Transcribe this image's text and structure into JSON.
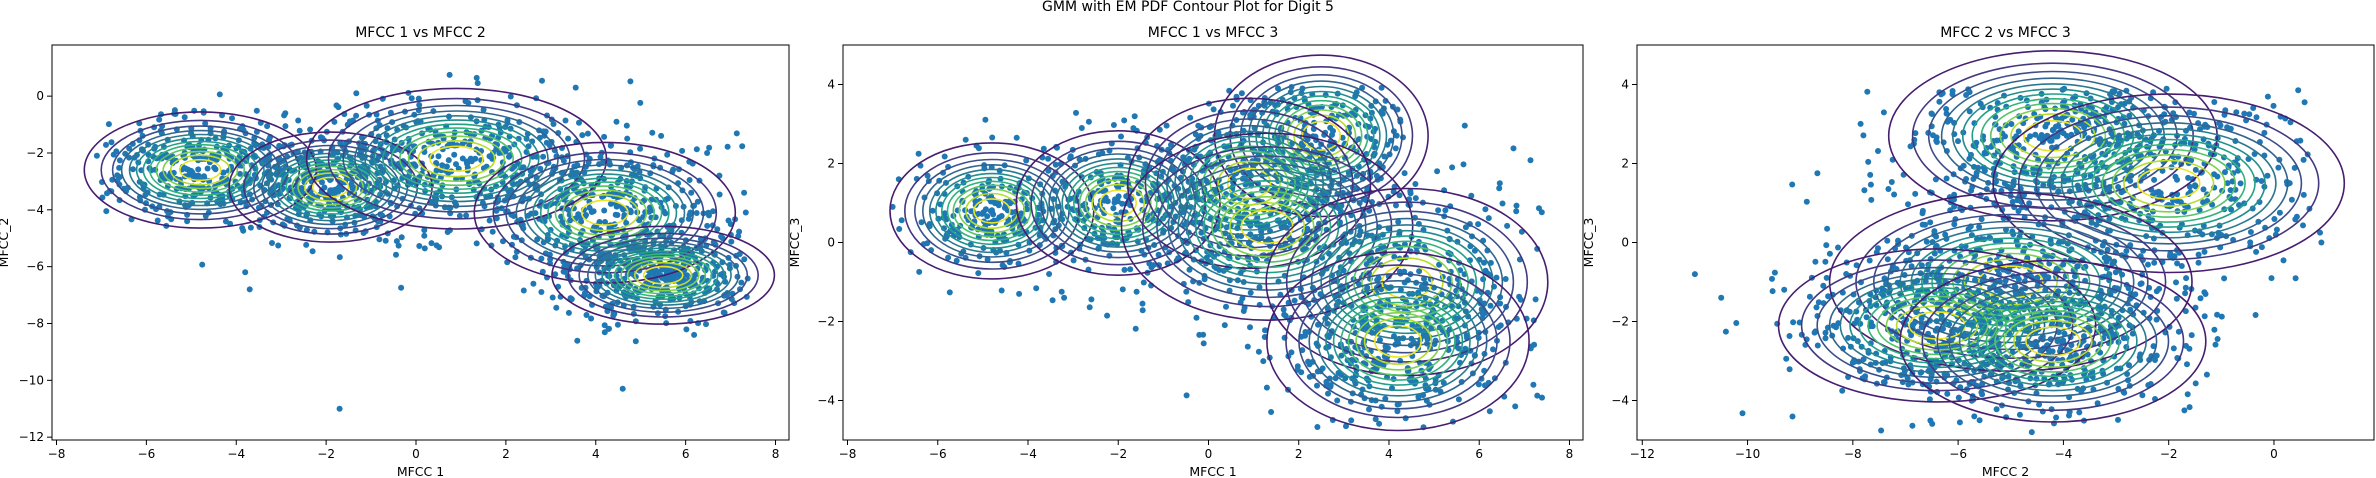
{
  "figure": {
    "suptitle": "GMM with EM PDF Contour Plot for Digit 5"
  },
  "colors": {
    "points": "#1f77b4",
    "contour_map": "viridis",
    "axes": "#000000"
  },
  "chart_data": [
    {
      "type": "scatter",
      "title": "MFCC 1 vs MFCC 2",
      "xlabel": "MFCC 1",
      "ylabel": "MFCC_2",
      "xlim": [
        -8.1,
        8.3
      ],
      "ylim": [
        -12.1,
        1.8
      ],
      "xticks": [
        -8,
        -6,
        -4,
        -2,
        0,
        2,
        4,
        6,
        8
      ],
      "yticks": [
        -12,
        -10,
        -8,
        -6,
        -4,
        -2,
        0
      ],
      "xtick_labels": [
        "−8",
        "−6",
        "−4",
        "−2",
        "0",
        "2",
        "4",
        "6",
        "8"
      ],
      "ytick_labels": [
        "−12",
        "−10",
        "−8",
        "−6",
        "−4",
        "−2",
        "0"
      ],
      "grid": false,
      "scatter_series": {
        "name": "",
        "spread": [
          [
            -7.0,
            7.4
          ],
          [
            -10.2,
            0.9
          ]
        ],
        "sample_points": [
          [
            -1.7,
            -11.0
          ],
          [
            4.6,
            -10.3
          ],
          [
            -3.8,
            -6.2
          ],
          [
            -3.7,
            -6.8
          ],
          [
            7.3,
            -3.4
          ],
          [
            -7.1,
            -2.1
          ]
        ]
      },
      "gmm_components": [
        {
          "mean": [
            -4.8,
            -2.6
          ],
          "sd": [
            1.2,
            0.95
          ]
        },
        {
          "mean": [
            -1.9,
            -3.2
          ],
          "sd": [
            1.05,
            0.9
          ]
        },
        {
          "mean": [
            0.9,
            -2.2
          ],
          "sd": [
            1.55,
            1.15
          ]
        },
        {
          "mean": [
            4.2,
            -4.1
          ],
          "sd": [
            1.35,
            1.15
          ]
        },
        {
          "mean": [
            5.5,
            -6.3
          ],
          "sd": [
            1.15,
            0.8
          ]
        }
      ]
    },
    {
      "type": "scatter",
      "title": "MFCC 1 vs MFCC 3",
      "xlabel": "MFCC 1",
      "ylabel": "MFCC_3",
      "xlim": [
        -8.1,
        8.3
      ],
      "ylim": [
        -5.0,
        5.0
      ],
      "xticks": [
        -8,
        -6,
        -4,
        -2,
        0,
        2,
        4,
        6,
        8
      ],
      "yticks": [
        -4,
        -2,
        0,
        2,
        4
      ],
      "xtick_labels": [
        "−8",
        "−6",
        "−4",
        "−2",
        "0",
        "2",
        "4",
        "6",
        "8"
      ],
      "ytick_labels": [
        "−4",
        "−2",
        "0",
        "2",
        "4"
      ],
      "grid": false,
      "scatter_series": {
        "name": "",
        "spread": [
          [
            -7.0,
            7.4
          ],
          [
            -4.7,
            4.0
          ]
        ],
        "sample_points": [
          [
            -7.0,
            0.9
          ],
          [
            5.4,
            1.9
          ],
          [
            -3.2,
            -1.4
          ],
          [
            7.2,
            -3.6
          ]
        ]
      },
      "gmm_components": [
        {
          "mean": [
            -4.8,
            0.8
          ],
          "sd": [
            1.05,
            0.8
          ]
        },
        {
          "mean": [
            -2.0,
            1.0
          ],
          "sd": [
            1.05,
            0.85
          ]
        },
        {
          "mean": [
            2.5,
            2.7
          ],
          "sd": [
            1.1,
            0.95
          ]
        },
        {
          "mean": [
            0.9,
            1.5
          ],
          "sd": [
            1.25,
            1.0
          ]
        },
        {
          "mean": [
            1.3,
            0.4
          ],
          "sd": [
            1.5,
            1.1
          ]
        },
        {
          "mean": [
            4.4,
            -1.0
          ],
          "sd": [
            1.45,
            1.1
          ]
        },
        {
          "mean": [
            4.2,
            -2.5
          ],
          "sd": [
            1.35,
            1.05
          ]
        }
      ]
    },
    {
      "type": "scatter",
      "title": "MFCC 2 vs MFCC 3",
      "xlabel": "MFCC 2",
      "ylabel": "MFCC_3",
      "xlim": [
        -12.1,
        1.9
      ],
      "ylim": [
        -5.0,
        5.0
      ],
      "xticks": [
        -12,
        -10,
        -8,
        -6,
        -4,
        -2,
        0
      ],
      "yticks": [
        -4,
        -2,
        0,
        2,
        4
      ],
      "xtick_labels": [
        "−12",
        "−10",
        "−8",
        "−6",
        "−4",
        "−2",
        "0"
      ],
      "ytick_labels": [
        "−4",
        "−2",
        "0",
        "2",
        "4"
      ],
      "grid": false,
      "scatter_series": {
        "name": "",
        "spread": [
          [
            -10.5,
            0.9
          ],
          [
            -4.8,
            3.9
          ]
        ],
        "sample_points": [
          [
            -11.0,
            -0.8
          ],
          [
            -10.5,
            -1.4
          ],
          [
            0.9,
            0.0
          ],
          [
            -4.6,
            -4.8
          ]
        ]
      },
      "gmm_components": [
        {
          "mean": [
            -4.2,
            2.7
          ],
          "sd": [
            1.45,
            1.0
          ]
        },
        {
          "mean": [
            -2.0,
            1.5
          ],
          "sd": [
            1.55,
            1.05
          ]
        },
        {
          "mean": [
            -5.0,
            -1.0
          ],
          "sd": [
            1.6,
            1.05
          ]
        },
        {
          "mean": [
            -6.4,
            -2.1
          ],
          "sd": [
            1.4,
            0.9
          ]
        },
        {
          "mean": [
            -4.2,
            -2.5
          ],
          "sd": [
            1.35,
            0.95
          ]
        }
      ]
    }
  ]
}
